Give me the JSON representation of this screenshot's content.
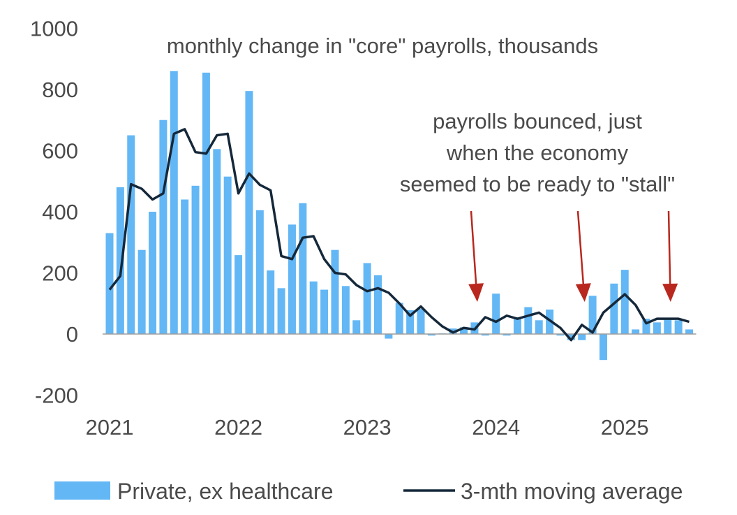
{
  "chart_data": {
    "type": "bar",
    "title": "monthly change in \"core\" payrolls, thousands",
    "ylim": [
      -200,
      1000
    ],
    "yticks": [
      -200,
      0,
      200,
      400,
      600,
      800,
      1000
    ],
    "xticks": [
      {
        "label": "2021",
        "index": 0
      },
      {
        "label": "2022",
        "index": 12
      },
      {
        "label": "2023",
        "index": 24
      },
      {
        "label": "2024",
        "index": 36
      },
      {
        "label": "2025",
        "index": 48
      }
    ],
    "annotation": {
      "lines": [
        "payrolls bounced, just",
        "when the economy",
        "seemed to be ready to \"stall\""
      ],
      "arrow_targets": [
        34,
        44,
        52
      ]
    },
    "bar_color": "#63b7f5",
    "line_color": "#15283a",
    "arrow_color": "#b8281e",
    "series": [
      {
        "name": "Private, ex healthcare",
        "type": "bar",
        "values": [
          330,
          480,
          650,
          275,
          400,
          700,
          860,
          440,
          485,
          855,
          605,
          515,
          258,
          795,
          405,
          208,
          150,
          358,
          428,
          172,
          145,
          275,
          157,
          45,
          232,
          192,
          -15,
          102,
          78,
          82,
          -5,
          2,
          18,
          22,
          38,
          -5,
          132,
          -5,
          55,
          88,
          45,
          80,
          -5,
          -20,
          -20,
          125,
          -85,
          165,
          210,
          15,
          50,
          38,
          48,
          45,
          15
        ]
      },
      {
        "name": "3-mth moving average",
        "type": "line",
        "values": [
          145,
          190,
          490,
          475,
          440,
          460,
          655,
          670,
          595,
          590,
          650,
          655,
          460,
          525,
          488,
          470,
          255,
          245,
          315,
          320,
          245,
          200,
          195,
          160,
          140,
          150,
          135,
          100,
          60,
          90,
          55,
          25,
          5,
          20,
          15,
          55,
          40,
          60,
          50,
          60,
          70,
          45,
          20,
          -20,
          30,
          5,
          70,
          100,
          130,
          95,
          35,
          50,
          50,
          50,
          40
        ]
      }
    ],
    "legend": {
      "placement": "bottom"
    }
  }
}
